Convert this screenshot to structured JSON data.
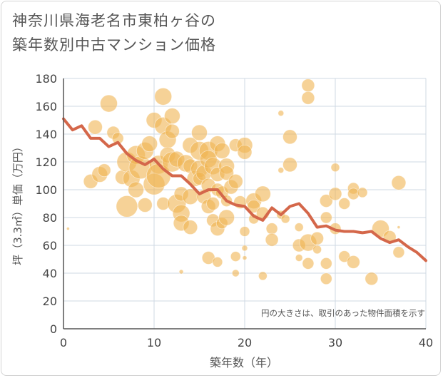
{
  "title": "神奈川県海老名市東柏ヶ谷の\n築年数別中古マンション価格",
  "chart_data": {
    "type": "scatter",
    "xlabel": "築年数（年）",
    "ylabel": "坪（3.3㎡）単価（万円）",
    "xlim": [
      0,
      40
    ],
    "ylim": [
      0,
      180
    ],
    "xticks": [
      "0",
      "10",
      "20",
      "30",
      "40"
    ],
    "yticks": [
      "0",
      "20",
      "40",
      "60",
      "80",
      "100",
      "120",
      "140",
      "160",
      "180"
    ],
    "grid": true,
    "annotation": "円の大きさは、取引のあった物件面積を示す",
    "colors": {
      "bubble": "#f0b452",
      "line": "#d4674a",
      "grid": "#cfd8e3",
      "axis": "#555555"
    },
    "points": [
      {
        "x": 0.5,
        "y": 72,
        "s": 2
      },
      {
        "x": 3,
        "y": 106,
        "s": 10
      },
      {
        "x": 3.5,
        "y": 145,
        "s": 10
      },
      {
        "x": 4,
        "y": 111,
        "s": 11
      },
      {
        "x": 4.5,
        "y": 114,
        "s": 9
      },
      {
        "x": 5,
        "y": 162,
        "s": 12
      },
      {
        "x": 5.5,
        "y": 141,
        "s": 9
      },
      {
        "x": 6,
        "y": 137,
        "s": 8
      },
      {
        "x": 6.5,
        "y": 109,
        "s": 10
      },
      {
        "x": 7,
        "y": 88,
        "s": 15
      },
      {
        "x": 7,
        "y": 120,
        "s": 14
      },
      {
        "x": 7.5,
        "y": 108,
        "s": 12
      },
      {
        "x": 8,
        "y": 125,
        "s": 13
      },
      {
        "x": 8,
        "y": 100,
        "s": 11
      },
      {
        "x": 8.5,
        "y": 116,
        "s": 16
      },
      {
        "x": 9,
        "y": 128,
        "s": 12
      },
      {
        "x": 9,
        "y": 89,
        "s": 10
      },
      {
        "x": 9.5,
        "y": 133,
        "s": 11
      },
      {
        "x": 10,
        "y": 104,
        "s": 15
      },
      {
        "x": 10,
        "y": 150,
        "s": 11
      },
      {
        "x": 10.5,
        "y": 118,
        "s": 13
      },
      {
        "x": 10.5,
        "y": 110,
        "s": 17
      },
      {
        "x": 11,
        "y": 167,
        "s": 12
      },
      {
        "x": 11,
        "y": 146,
        "s": 12
      },
      {
        "x": 11,
        "y": 90,
        "s": 9
      },
      {
        "x": 11.5,
        "y": 136,
        "s": 12
      },
      {
        "x": 11.5,
        "y": 125,
        "s": 11
      },
      {
        "x": 12,
        "y": 153,
        "s": 11
      },
      {
        "x": 12,
        "y": 142,
        "s": 10
      },
      {
        "x": 12,
        "y": 120,
        "s": 14
      },
      {
        "x": 12.5,
        "y": 122,
        "s": 11
      },
      {
        "x": 12.5,
        "y": 90,
        "s": 13
      },
      {
        "x": 13,
        "y": 97,
        "s": 10
      },
      {
        "x": 13,
        "y": 83,
        "s": 12
      },
      {
        "x": 13,
        "y": 76,
        "s": 11
      },
      {
        "x": 13,
        "y": 41,
        "s": 3
      },
      {
        "x": 13.5,
        "y": 119,
        "s": 12
      },
      {
        "x": 14,
        "y": 132,
        "s": 11
      },
      {
        "x": 14,
        "y": 117,
        "s": 10
      },
      {
        "x": 14,
        "y": 95,
        "s": 11
      },
      {
        "x": 14,
        "y": 73,
        "s": 10
      },
      {
        "x": 14.5,
        "y": 108,
        "s": 11
      },
      {
        "x": 15,
        "y": 141,
        "s": 11
      },
      {
        "x": 15,
        "y": 128,
        "s": 13
      },
      {
        "x": 15,
        "y": 115,
        "s": 12
      },
      {
        "x": 15,
        "y": 108,
        "s": 9
      },
      {
        "x": 15.5,
        "y": 112,
        "s": 11
      },
      {
        "x": 15.5,
        "y": 95,
        "s": 10
      },
      {
        "x": 16,
        "y": 128,
        "s": 13
      },
      {
        "x": 16,
        "y": 122,
        "s": 12
      },
      {
        "x": 16,
        "y": 103,
        "s": 10
      },
      {
        "x": 16,
        "y": 88,
        "s": 10
      },
      {
        "x": 16,
        "y": 51,
        "s": 9
      },
      {
        "x": 16.5,
        "y": 117,
        "s": 12
      },
      {
        "x": 16.5,
        "y": 90,
        "s": 9
      },
      {
        "x": 16.5,
        "y": 78,
        "s": 9
      },
      {
        "x": 17,
        "y": 133,
        "s": 11
      },
      {
        "x": 17,
        "y": 111,
        "s": 10
      },
      {
        "x": 17,
        "y": 100,
        "s": 9
      },
      {
        "x": 17,
        "y": 72,
        "s": 10
      },
      {
        "x": 17,
        "y": 48,
        "s": 7
      },
      {
        "x": 17.5,
        "y": 128,
        "s": 11
      },
      {
        "x": 17.5,
        "y": 98,
        "s": 9
      },
      {
        "x": 17.5,
        "y": 76,
        "s": 8
      },
      {
        "x": 18,
        "y": 117,
        "s": 11
      },
      {
        "x": 18,
        "y": 112,
        "s": 10
      },
      {
        "x": 18,
        "y": 92,
        "s": 8
      },
      {
        "x": 18,
        "y": 80,
        "s": 11
      },
      {
        "x": 18.5,
        "y": 102,
        "s": 10
      },
      {
        "x": 19,
        "y": 132,
        "s": 9
      },
      {
        "x": 19,
        "y": 106,
        "s": 10
      },
      {
        "x": 19,
        "y": 52,
        "s": 7
      },
      {
        "x": 19,
        "y": 40,
        "s": 5
      },
      {
        "x": 19.5,
        "y": 91,
        "s": 9
      },
      {
        "x": 20,
        "y": 132,
        "s": 11
      },
      {
        "x": 20,
        "y": 127,
        "s": 10
      },
      {
        "x": 20,
        "y": 70,
        "s": 7
      },
      {
        "x": 20,
        "y": 58,
        "s": 4
      },
      {
        "x": 20,
        "y": 51,
        "s": 3
      },
      {
        "x": 21,
        "y": 92,
        "s": 11
      },
      {
        "x": 21,
        "y": 88,
        "s": 9
      },
      {
        "x": 21,
        "y": 79,
        "s": 7
      },
      {
        "x": 22,
        "y": 97,
        "s": 11
      },
      {
        "x": 22,
        "y": 83,
        "s": 9
      },
      {
        "x": 22,
        "y": 38,
        "s": 6
      },
      {
        "x": 23,
        "y": 72,
        "s": 8
      },
      {
        "x": 23,
        "y": 64,
        "s": 9
      },
      {
        "x": 24,
        "y": 155,
        "s": 4
      },
      {
        "x": 24,
        "y": 114,
        "s": 4
      },
      {
        "x": 24,
        "y": 82,
        "s": 6
      },
      {
        "x": 24.5,
        "y": 79,
        "s": 6
      },
      {
        "x": 25,
        "y": 138,
        "s": 10
      },
      {
        "x": 25,
        "y": 118,
        "s": 10
      },
      {
        "x": 26,
        "y": 73,
        "s": 6
      },
      {
        "x": 26,
        "y": 60,
        "s": 9
      },
      {
        "x": 26,
        "y": 51,
        "s": 5
      },
      {
        "x": 27,
        "y": 175,
        "s": 9
      },
      {
        "x": 27,
        "y": 166,
        "s": 9
      },
      {
        "x": 27,
        "y": 62,
        "s": 12
      },
      {
        "x": 27,
        "y": 47,
        "s": 8
      },
      {
        "x": 28,
        "y": 65,
        "s": 9
      },
      {
        "x": 28,
        "y": 57,
        "s": 6
      },
      {
        "x": 29,
        "y": 92,
        "s": 9
      },
      {
        "x": 29,
        "y": 80,
        "s": 8
      },
      {
        "x": 29,
        "y": 47,
        "s": 8
      },
      {
        "x": 29,
        "y": 36,
        "s": 8
      },
      {
        "x": 30,
        "y": 116,
        "s": 6
      },
      {
        "x": 30,
        "y": 97,
        "s": 9
      },
      {
        "x": 30,
        "y": 72,
        "s": 8
      },
      {
        "x": 31,
        "y": 90,
        "s": 8
      },
      {
        "x": 31,
        "y": 52,
        "s": 8
      },
      {
        "x": 32,
        "y": 101,
        "s": 8
      },
      {
        "x": 32,
        "y": 97,
        "s": 8
      },
      {
        "x": 32,
        "y": 48,
        "s": 9
      },
      {
        "x": 33,
        "y": 98,
        "s": 7
      },
      {
        "x": 34,
        "y": 36,
        "s": 9
      },
      {
        "x": 35,
        "y": 72,
        "s": 12
      },
      {
        "x": 36,
        "y": 66,
        "s": 9
      },
      {
        "x": 37,
        "y": 105,
        "s": 10
      },
      {
        "x": 37,
        "y": 55,
        "s": 8
      },
      {
        "x": 37,
        "y": 73,
        "s": 2
      }
    ],
    "trend": {
      "x": [
        0,
        1,
        2,
        3,
        4,
        5,
        6,
        7,
        8,
        9,
        10,
        11,
        12,
        13,
        14,
        15,
        16,
        17,
        18,
        19,
        20,
        21,
        22,
        23,
        24,
        25,
        26,
        27,
        28,
        29,
        30,
        31,
        32,
        33,
        34,
        35,
        36,
        37,
        38,
        39,
        40
      ],
      "y": [
        151,
        143,
        146,
        137,
        137,
        131,
        134,
        126,
        121,
        118,
        122,
        115,
        110,
        110,
        104,
        97,
        100,
        100,
        92,
        89,
        88,
        81,
        78,
        87,
        82,
        88,
        90,
        83,
        73,
        74,
        71,
        70,
        70,
        69,
        70,
        65,
        62,
        64,
        59,
        55,
        49
      ]
    }
  }
}
